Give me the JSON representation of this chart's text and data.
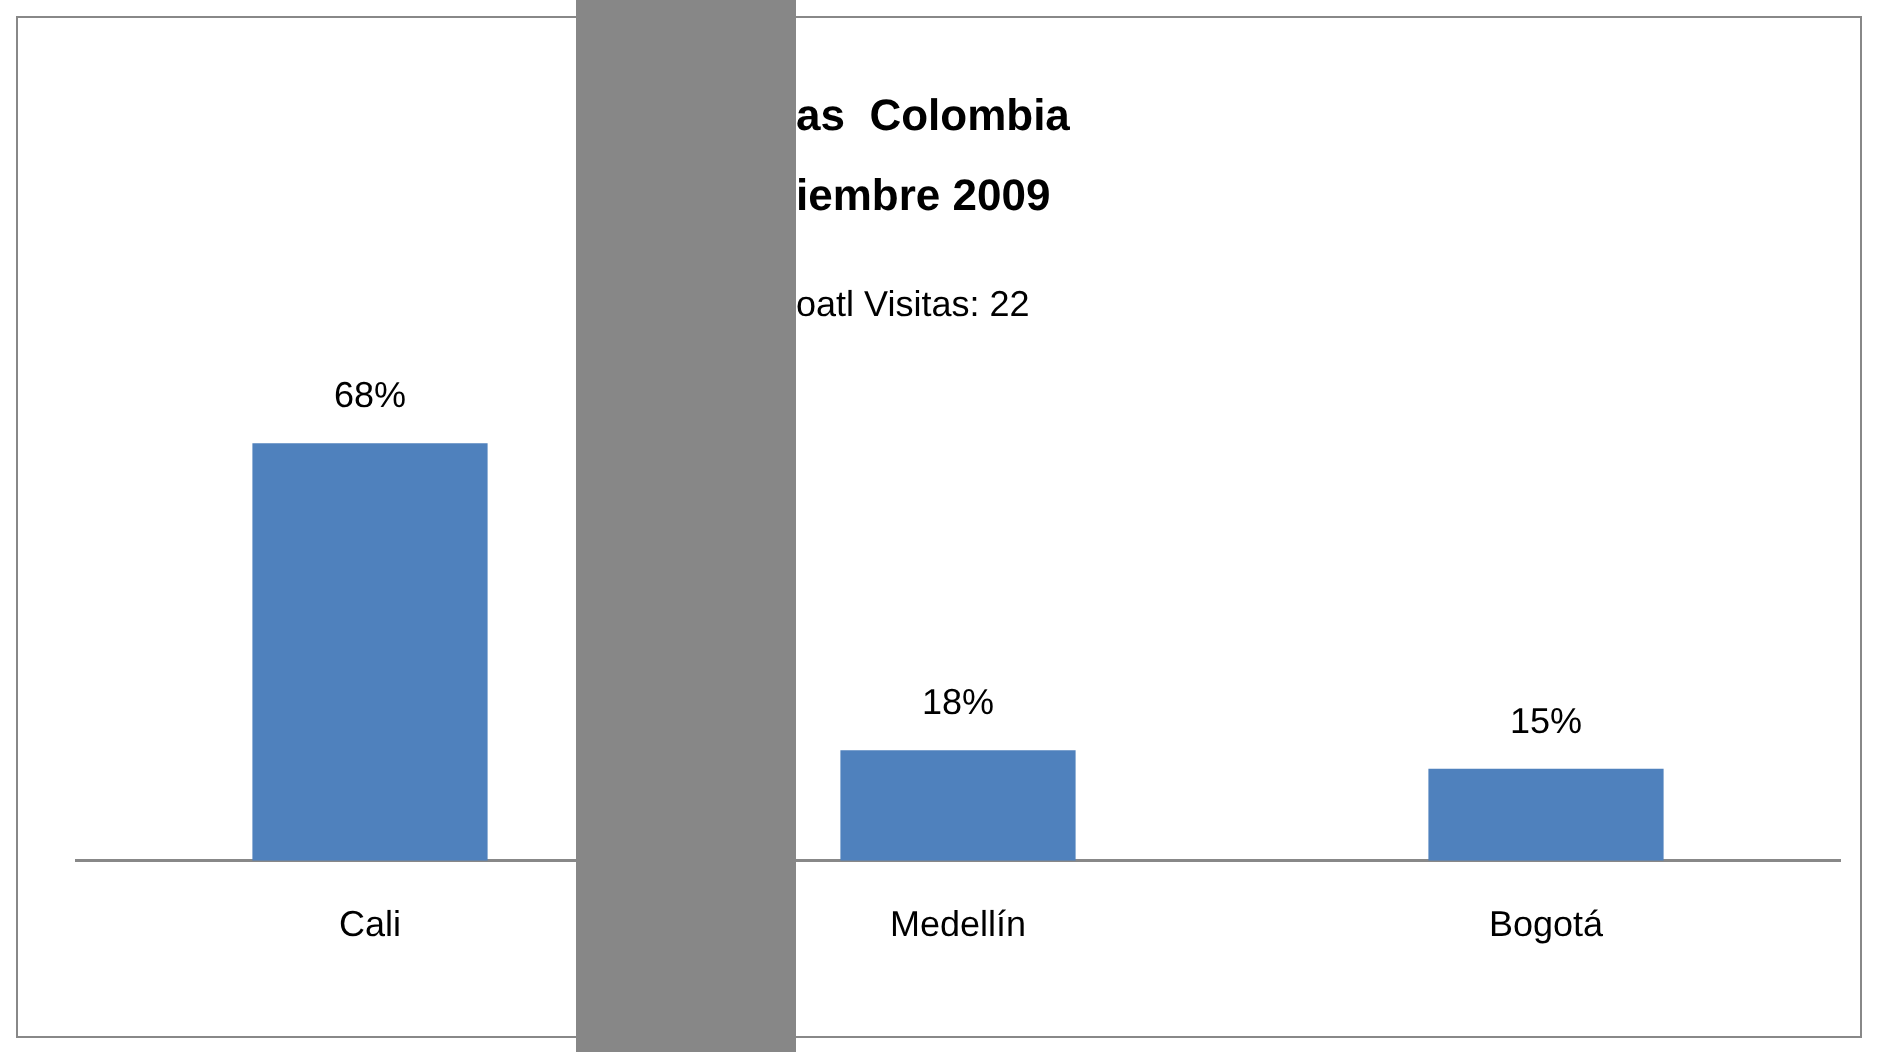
{
  "chart_data": {
    "type": "bar",
    "title": "as  Colombia\niembre 2009",
    "subtitle": "oatl Visitas: 22",
    "categories": [
      "Cali",
      "Medellín",
      "Bogotá"
    ],
    "values": [
      68,
      18,
      15
    ],
    "value_labels": [
      "68%",
      "18%",
      "15%"
    ],
    "color": "#4f81bd",
    "grid": false,
    "legend": false
  }
}
